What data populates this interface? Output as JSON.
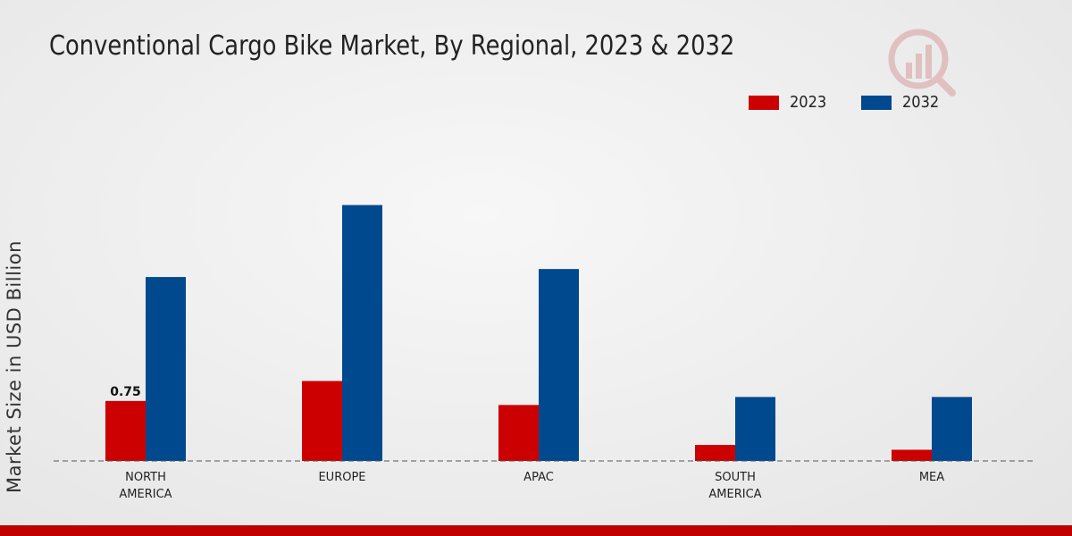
{
  "chart_data": {
    "type": "bar",
    "title": "Conventional Cargo Bike Market, By Regional, 2023 & 2032",
    "xlabel": "",
    "ylabel": "Market Size in USD Billion",
    "categories": [
      [
        "NORTH",
        "AMERICA"
      ],
      [
        "EUROPE"
      ],
      [
        "APAC"
      ],
      [
        "SOUTH",
        "AMERICA"
      ],
      [
        "MEA"
      ]
    ],
    "series": [
      {
        "name": "2023",
        "color": "#cc0000",
        "values": [
          0.75,
          1.0,
          0.7,
          0.2,
          0.14
        ]
      },
      {
        "name": "2032",
        "color": "#00498f",
        "values": [
          2.3,
          3.2,
          2.4,
          0.8,
          0.8
        ]
      }
    ],
    "data_labels": [
      {
        "series": 0,
        "index": 0,
        "text": "0.75"
      }
    ],
    "ylim": [
      0,
      4.2
    ],
    "legend_position": "top-right",
    "grid": false
  }
}
